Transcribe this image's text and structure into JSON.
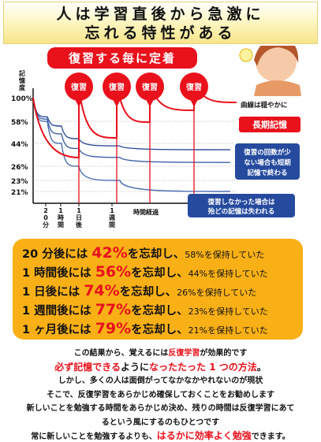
{
  "header": {
    "line1": "人は学習直後から急激に",
    "line2": "忘れる特性がある"
  },
  "chart_data": {
    "type": "line",
    "ylabel": "記憶度",
    "xlabel": "時間経過",
    "yticks": [
      "100%",
      "58%",
      "44%",
      "26%",
      "23%",
      "21%"
    ],
    "xticks": [
      "20分後",
      "1時間後",
      "1日後",
      "1週間後"
    ],
    "banner": "復習する毎に定着",
    "review_label": "復習",
    "review_count": 4,
    "series": [
      {
        "values": [
          100,
          58,
          44,
          26,
          23,
          21
        ],
        "dashed": false
      },
      {
        "values": [
          100,
          62,
          50,
          40,
          33,
          29
        ],
        "dashed": false
      },
      {
        "values": [
          100,
          66,
          55,
          47,
          42,
          39
        ],
        "dashed": false
      }
    ],
    "annotations": {
      "gentle": "曲線は穏やかに",
      "long_term": "長期記憶",
      "few_reviews": [
        "復習の回数が少",
        "ない場合も短期",
        "記憶で終わる"
      ],
      "no_review": [
        "復習しなかった場合は",
        "殆どの記憶は失われる"
      ]
    },
    "colors": {
      "red": "#e8111c",
      "blue": "#2f66c4",
      "navy": "#1f3a88",
      "orange": "#f9b016"
    }
  },
  "summary": [
    {
      "time": "20 分後には ",
      "pct": "42%",
      "forgot": "を忘却し、",
      "kept": "58%を保持していた"
    },
    {
      "time": "1 時間後には ",
      "pct": "56%",
      "forgot": "を忘却し、",
      "kept": "44%を保持していた"
    },
    {
      "time": "1 日後には ",
      "pct": "74%",
      "forgot": "を忘却し、",
      "kept": "26%を保持していた"
    },
    {
      "time": "1 週間後には ",
      "pct": "77%",
      "forgot": "を忘却し、",
      "kept": "23%を保持していた"
    },
    {
      "time": "1 ヶ月後には ",
      "pct": "79%",
      "forgot": "を忘却し、",
      "kept": "21%を保持していた"
    }
  ],
  "bottom": {
    "l1a": "この結果から、覚えるには",
    "l1b": "反復学習",
    "l1c": "が効果的です",
    "l2a": "必ず記憶できる",
    "l2b": "ように",
    "l2c": "なったたった 1 つの方法",
    "l2d": "。",
    "l3": "しかし、多くの人は面倒がってなかなかやれないのが現状",
    "l4": "そこで、反復学習をあらかじめ確保しておくことをお勧めします",
    "l5": "新しいことを勉強する時間をあらかじめ決め、残りの時間は反復学習にあて",
    "l6": "るという風にするのもひとつです",
    "l7a": "常に新しいことを勉強するよりも、",
    "l7b": "はるかに効率よく勉強",
    "l7c": "できます。"
  }
}
